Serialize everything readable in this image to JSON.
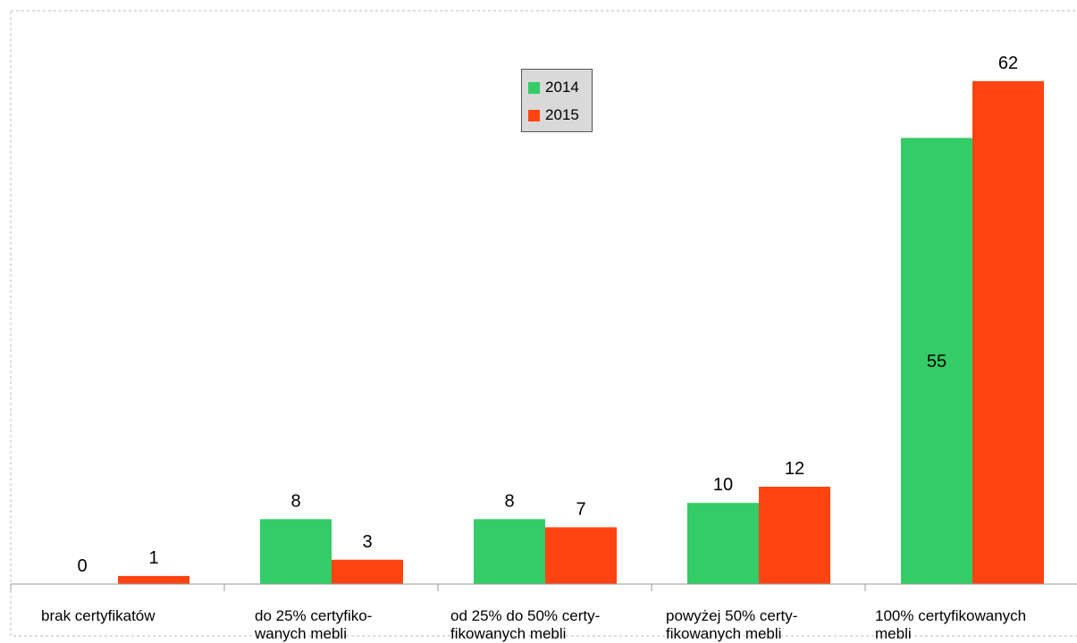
{
  "chart_data": {
    "type": "bar",
    "categories": [
      "brak certyfikatów",
      "do 25% certyfiko-\nwanych mebli",
      "od 25% do 50% certy-\nfikowanych mebli",
      "powyżej 50% certy-\nfikowanych mebli",
      "100% certyfikowanych\nmebli"
    ],
    "series": [
      {
        "name": "2014",
        "color": "#33cc66",
        "values": [
          0,
          8,
          8,
          10,
          55
        ]
      },
      {
        "name": "2015",
        "color": "#ff4411",
        "values": [
          1,
          3,
          7,
          12,
          62
        ]
      }
    ],
    "ylim": [
      0,
      72
    ],
    "title": "",
    "xlabel": "",
    "ylabel": "",
    "legend": "top-center",
    "grid": false
  }
}
